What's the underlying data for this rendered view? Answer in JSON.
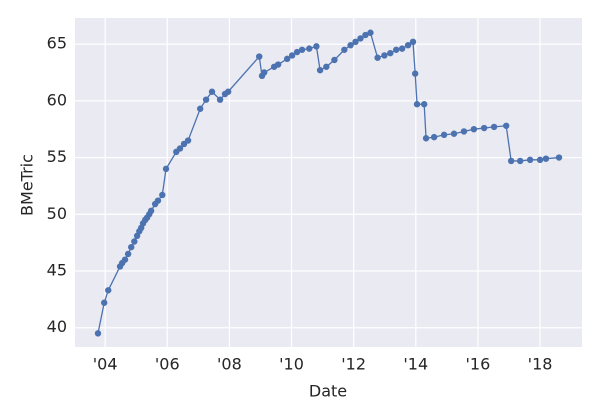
{
  "chart_data": {
    "type": "line",
    "x_label": "Date",
    "y_label": "BMeTric",
    "color": "#4c72b0",
    "grid": true,
    "xlim": [
      2003.03,
      2019.35
    ],
    "ylim": [
      38.3,
      67.3
    ],
    "xticks": [
      {
        "value": 2004,
        "label": "'04"
      },
      {
        "value": 2006,
        "label": "'06"
      },
      {
        "value": 2008,
        "label": "'08"
      },
      {
        "value": 2010,
        "label": "'10"
      },
      {
        "value": 2012,
        "label": "'12"
      },
      {
        "value": 2014,
        "label": "'14"
      },
      {
        "value": 2016,
        "label": "'16"
      },
      {
        "value": 2018,
        "label": "'18"
      }
    ],
    "yticks": [
      40,
      45,
      50,
      55,
      60,
      65
    ],
    "x": [
      2003.77,
      2003.97,
      2004.1,
      2004.48,
      2004.55,
      2004.64,
      2004.74,
      2004.84,
      2004.94,
      2005.03,
      2005.1,
      2005.16,
      2005.22,
      2005.29,
      2005.35,
      2005.42,
      2005.48,
      2005.61,
      2005.7,
      2005.84,
      2005.96,
      2006.29,
      2006.41,
      2006.54,
      2006.67,
      2007.06,
      2007.25,
      2007.44,
      2007.7,
      2007.86,
      2007.96,
      2008.96,
      2009.05,
      2009.12,
      2009.44,
      2009.57,
      2009.86,
      2010.02,
      2010.18,
      2010.34,
      2010.57,
      2010.8,
      2010.92,
      2011.12,
      2011.38,
      2011.7,
      2011.9,
      2012.06,
      2012.22,
      2012.38,
      2012.54,
      2012.77,
      2012.99,
      2013.18,
      2013.37,
      2013.56,
      2013.75,
      2013.91,
      2013.98,
      2014.04,
      2014.27,
      2014.33,
      2014.59,
      2014.91,
      2015.23,
      2015.55,
      2015.87,
      2016.2,
      2016.52,
      2016.91,
      2017.07,
      2017.36,
      2017.68,
      2018.0,
      2018.19,
      2018.61
    ],
    "values": [
      39.5,
      42.2,
      43.3,
      45.4,
      45.7,
      46.0,
      46.5,
      47.1,
      47.6,
      48.1,
      48.5,
      48.8,
      49.2,
      49.5,
      49.7,
      50.0,
      50.3,
      50.9,
      51.2,
      51.7,
      54.0,
      55.5,
      55.8,
      56.2,
      56.5,
      59.3,
      60.1,
      60.8,
      60.1,
      60.6,
      60.8,
      63.9,
      62.2,
      62.5,
      63.0,
      63.2,
      63.7,
      64.0,
      64.3,
      64.5,
      64.6,
      64.8,
      62.7,
      63.0,
      63.6,
      64.5,
      64.9,
      65.2,
      65.5,
      65.8,
      66.0,
      63.8,
      64.0,
      64.2,
      64.5,
      64.6,
      64.9,
      65.2,
      62.4,
      59.7,
      59.7,
      56.7,
      56.8,
      57.0,
      57.1,
      57.3,
      57.5,
      57.6,
      57.7,
      57.8,
      54.7,
      54.7,
      54.8,
      54.8,
      54.9,
      55.0
    ]
  }
}
